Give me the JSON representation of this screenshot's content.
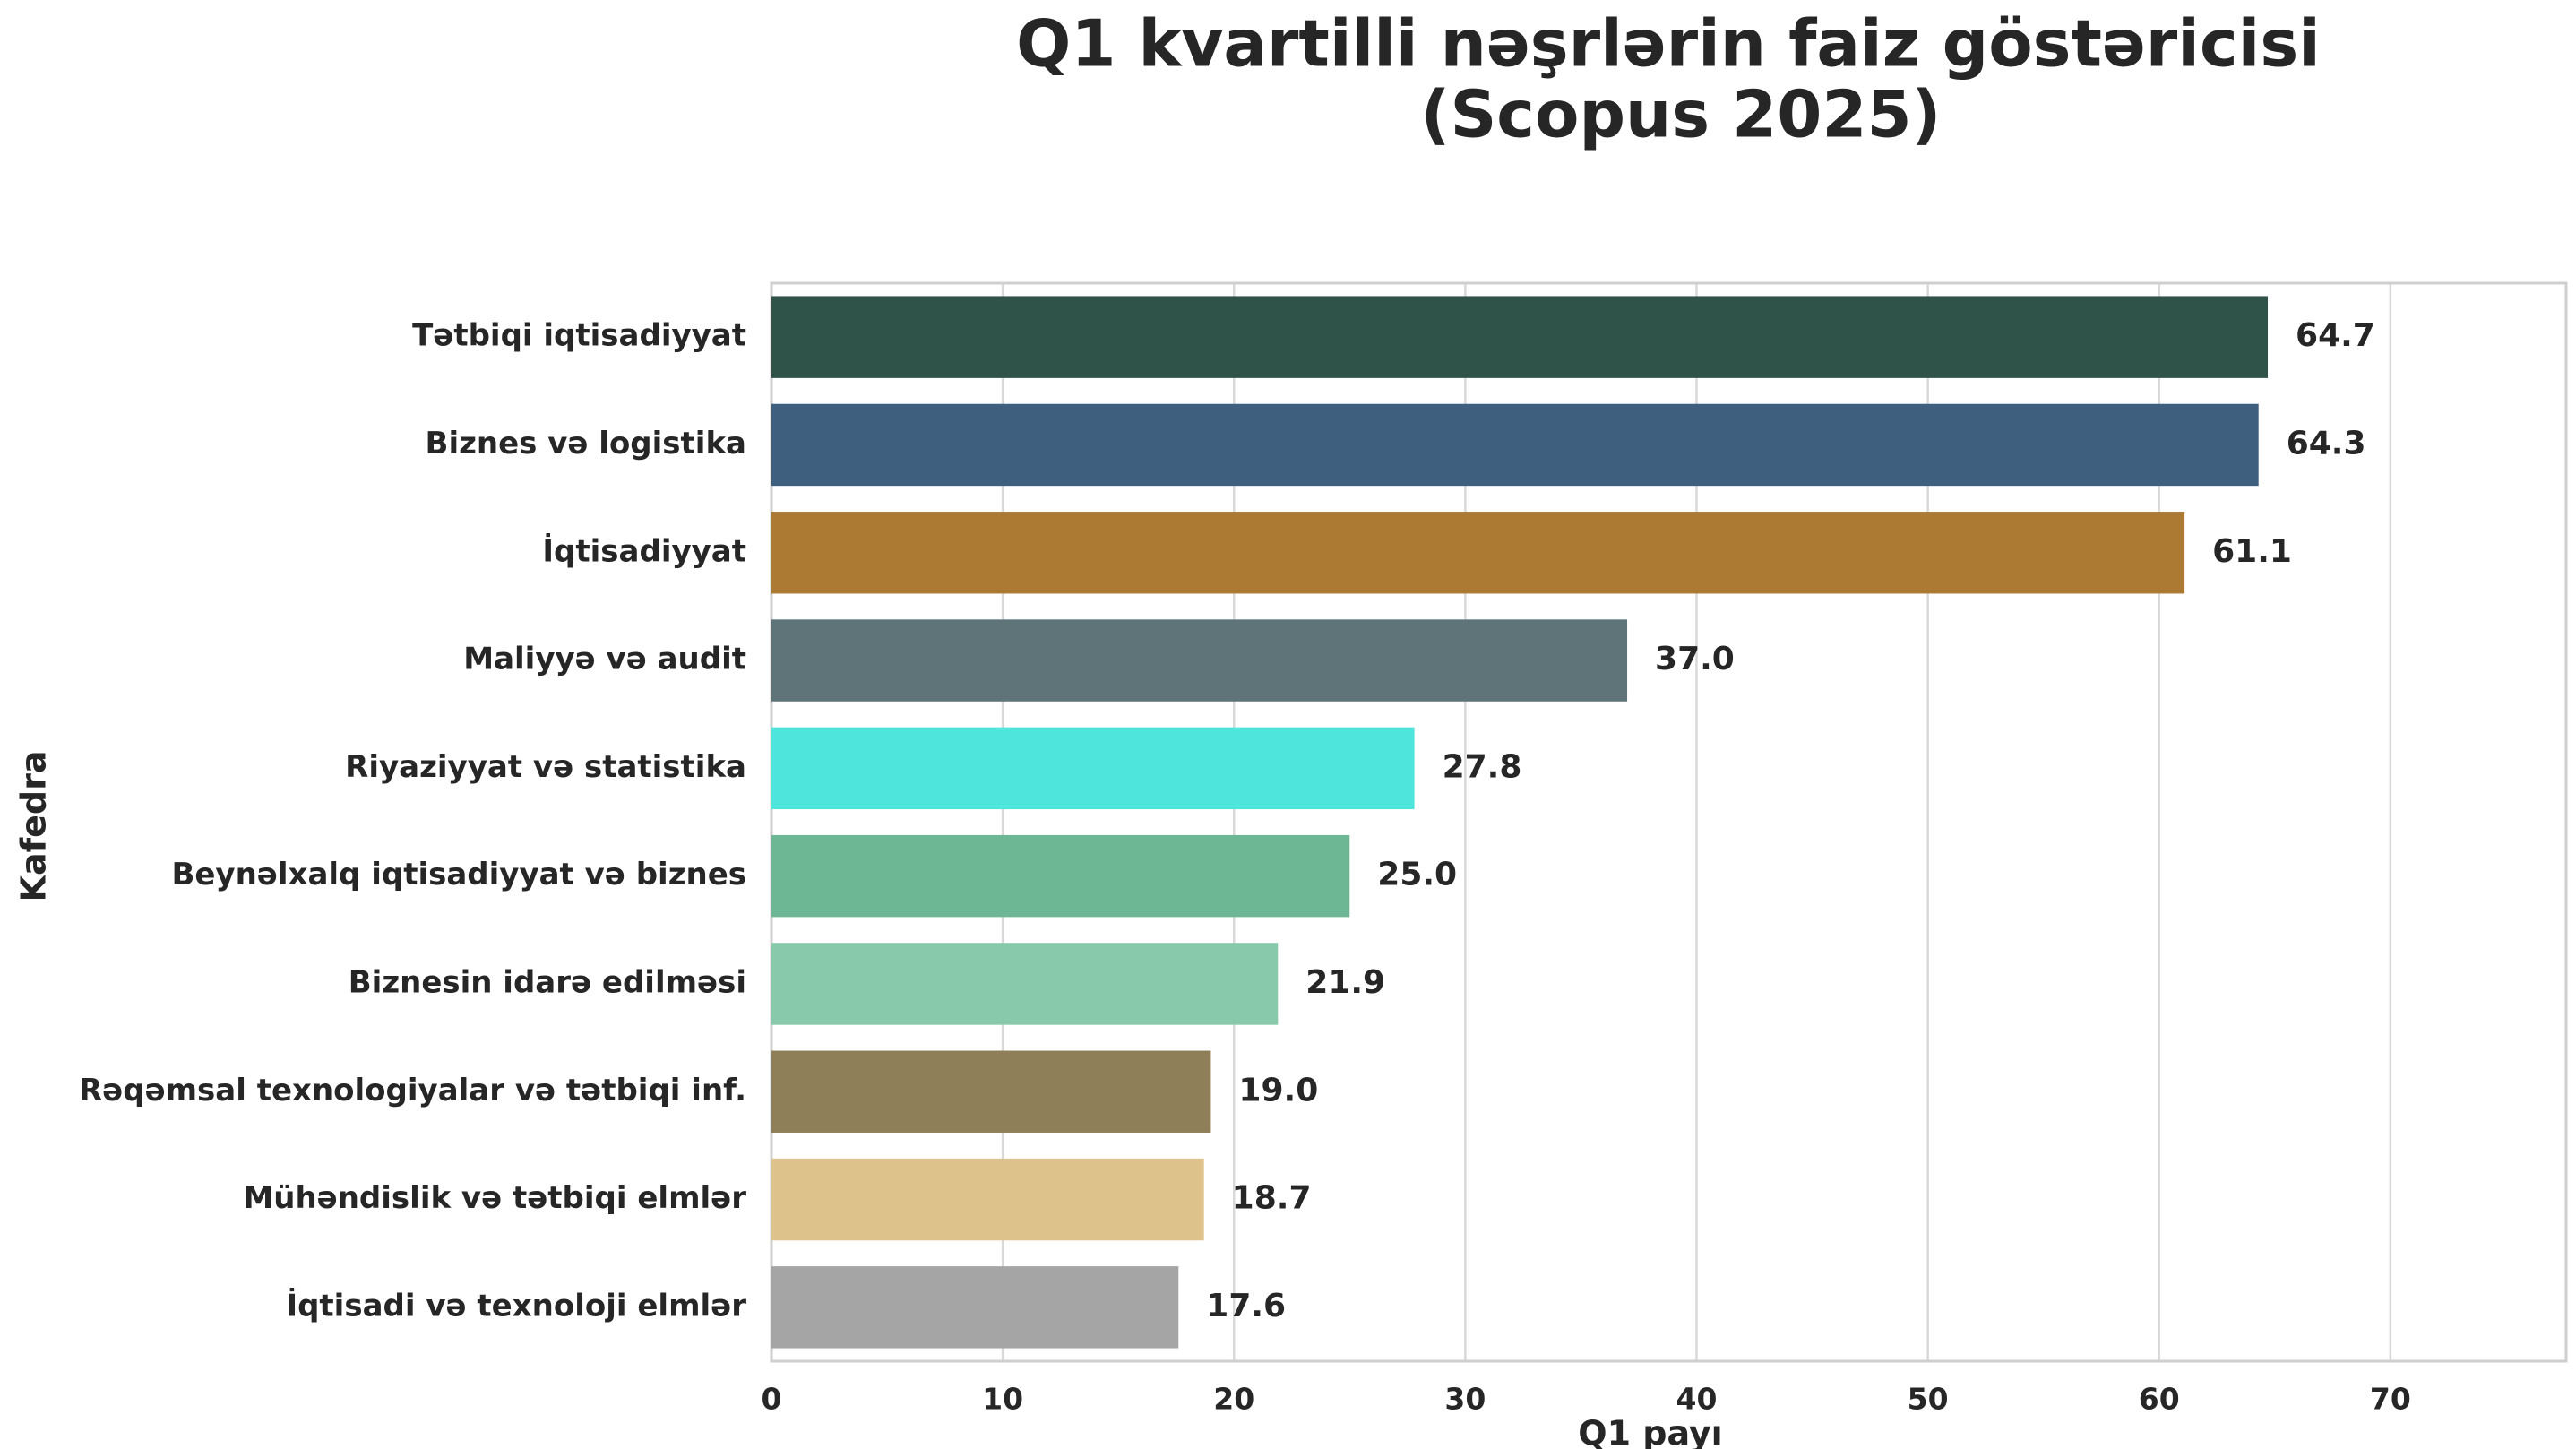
{
  "chart_data": {
    "type": "barh",
    "title": [
      "Q1 kvartilli nəşrlərin faiz göstəricisi",
      "(Scopus 2025)"
    ],
    "xlabel": "Q1 payı",
    "ylabel": "Kafedra",
    "categories": [
      "Tətbiqi iqtisadiyyat",
      "Biznes və logistika",
      "İqtisadiyyat",
      "Maliyyə və audit",
      "Riyaziyyat və statistika",
      "Beynəlxalq iqtisadiyyat və biznes",
      "Biznesin idarə edilməsi",
      "Rəqəmsal texnologiyalar və tətbiqi inf.",
      "Mühəndislik və tətbiqi elmlər",
      "İqtisadi və texnoloji elmlər"
    ],
    "values": [
      64.7,
      64.3,
      61.1,
      37.0,
      27.8,
      25.0,
      21.9,
      19.0,
      18.7,
      17.6
    ],
    "value_labels": [
      "64.7",
      "64.3",
      "61.1",
      "37.0",
      "27.8",
      "25.0",
      "21.9",
      "19.0",
      "18.7",
      "17.6"
    ],
    "colors": [
      "#2f5249",
      "#3e5f7d",
      "#ad7a34",
      "#5f7478",
      "#4de5dc",
      "#6db795",
      "#87c9aa",
      "#8e7f58",
      "#dec28b",
      "#a5a5a5"
    ],
    "xlim": [
      0,
      77.6
    ],
    "xticks": [
      0,
      10,
      20,
      30,
      40,
      50,
      60,
      70
    ],
    "grid": true
  }
}
